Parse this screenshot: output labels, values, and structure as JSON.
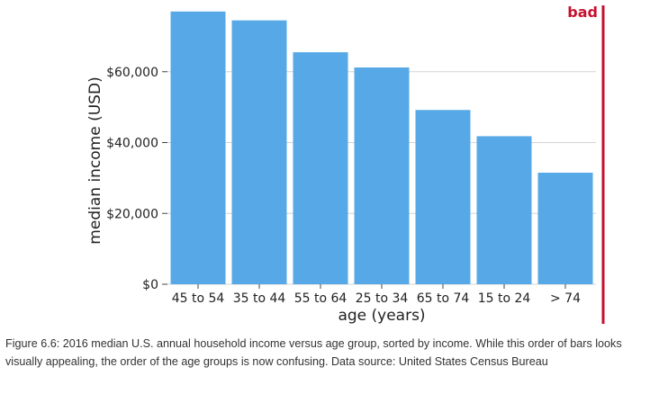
{
  "chart_data": {
    "type": "bar",
    "categories": [
      "45 to 54",
      "35 to 44",
      "55 to 64",
      "25 to 34",
      "65 to 74",
      "15 to 24",
      "> 74"
    ],
    "values": [
      77000,
      74500,
      65500,
      61200,
      49200,
      41800,
      31500
    ],
    "xlabel": "age (years)",
    "ylabel": "median income (USD)",
    "ylim": [
      0,
      80000
    ],
    "yticks": [
      0,
      20000,
      40000,
      60000
    ],
    "ytick_labels": [
      "$0",
      "$20,000",
      "$40,000",
      "$60,000"
    ],
    "grid": "horizontal",
    "bar_color": "#56a9e6",
    "annotation": {
      "text": "bad",
      "color": "#c8102e"
    }
  },
  "caption": "Figure 6.6: 2016 median U.S. annual household income versus age group, sorted by income. While this order of bars looks visually appealing, the order of the age groups is now confusing. Data source: United States Census Bureau"
}
